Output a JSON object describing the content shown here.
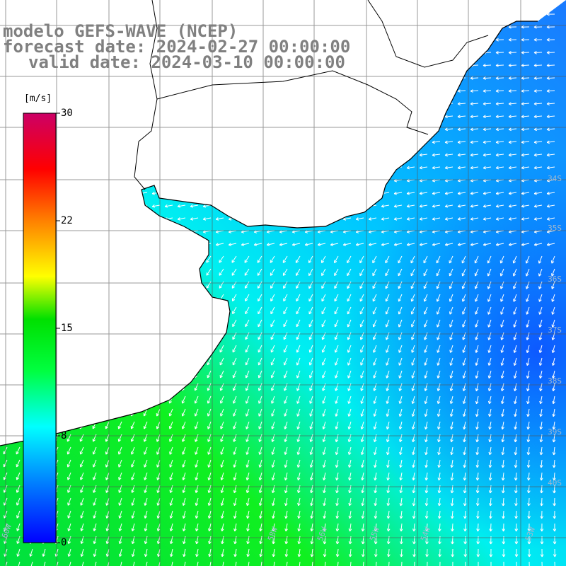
{
  "title": {
    "line1": "modelo GEFS-WAVE (NCEP)",
    "line2": "forecast date: 2024-02-27 00:00:00",
    "line3": "valid date: 2024-03-10 00:00:00"
  },
  "colorbar": {
    "unit": "[m/s]",
    "ticks": [
      "30",
      "22",
      "15",
      "8",
      "0"
    ],
    "tick_values": [
      30,
      22,
      15,
      8,
      0
    ],
    "colors": [
      "#0000ff",
      "#0088ff",
      "#00ffff",
      "#00ff00",
      "#ffff00",
      "#ff8800",
      "#ff0000",
      "#cc0066"
    ]
  },
  "map": {
    "lat_labels": [
      "34S",
      "35S",
      "36S",
      "37S",
      "38S",
      "39S",
      "40S"
    ],
    "lon_labels": [
      "60W",
      "58W",
      "56W",
      "55W",
      "54W",
      "53W"
    ],
    "land_color": "#ffffff",
    "coast_color": "#000000",
    "grid_color": "#555555",
    "arrow_color": "#ffffff"
  }
}
